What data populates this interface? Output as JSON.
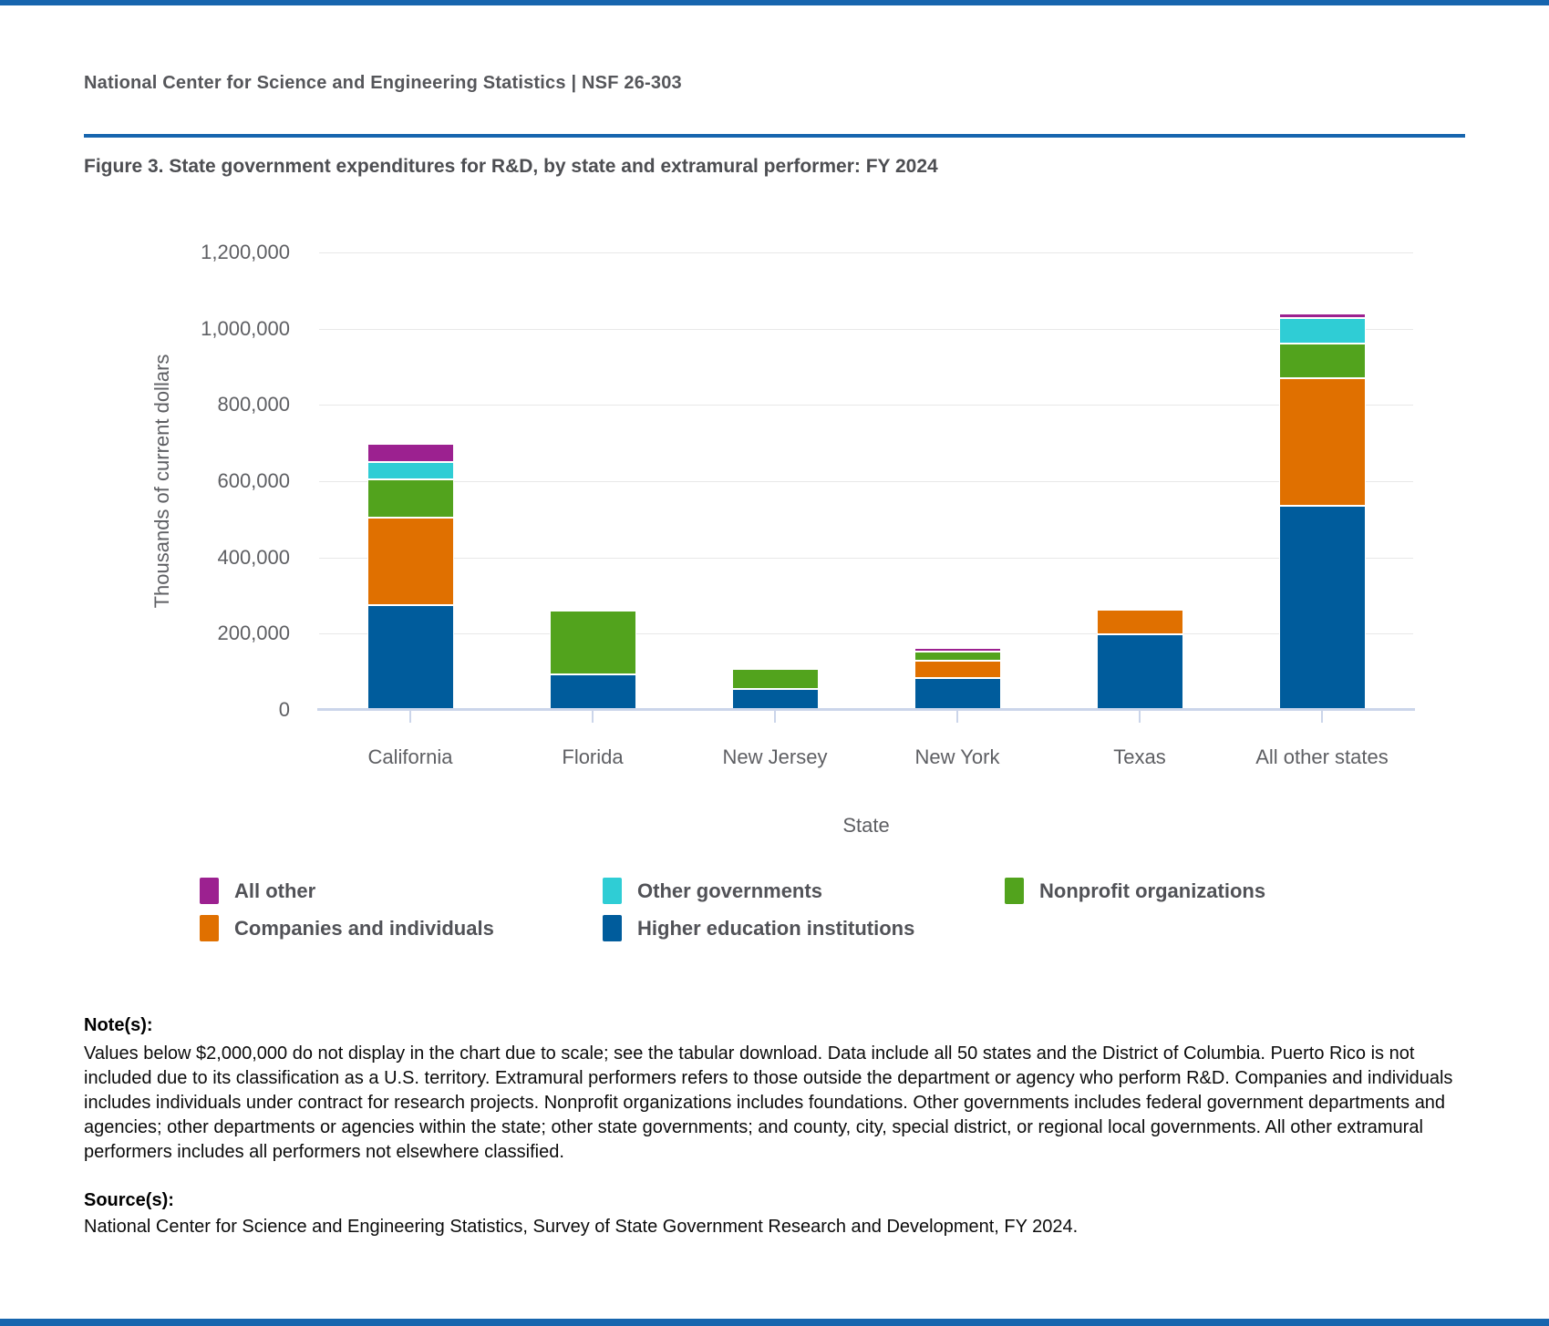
{
  "page": {
    "accent_color": "#1765ae"
  },
  "header": {
    "text": "National Center for Science and Engineering Statistics  |  NSF 26-303"
  },
  "figure": {
    "title": "Figure 3. State government expenditures for R&D, by state and extramural performer: FY 2024"
  },
  "chart_data": {
    "type": "bar",
    "stacked": true,
    "title": "Figure 3. State government expenditures for R&D, by state and extramural performer: FY 2024",
    "categories": [
      "California",
      "Florida",
      "New Jersey",
      "New York",
      "Texas",
      "All other states"
    ],
    "series": [
      {
        "name": "Higher education institutions",
        "color": "#005c9c",
        "values": [
          276000,
          93000,
          54000,
          84000,
          198000,
          535000
        ]
      },
      {
        "name": "Companies and individuals",
        "color": "#e07000",
        "values": [
          230000,
          0,
          0,
          45000,
          64000,
          335000
        ]
      },
      {
        "name": "Nonprofit organizations",
        "color": "#52a31d",
        "values": [
          100000,
          167000,
          53000,
          24000,
          0,
          90000
        ]
      },
      {
        "name": "Other governments",
        "color": "#2fcdd5",
        "values": [
          45000,
          0,
          0,
          0,
          0,
          68000
        ]
      },
      {
        "name": "All other",
        "color": "#9c2190",
        "values": [
          48000,
          0,
          0,
          10000,
          0,
          12000
        ]
      }
    ],
    "xlabel": "State",
    "ylabel": "Thousands of current dollars",
    "ylim": [
      0,
      1200000
    ],
    "ytick_interval": 200000,
    "ytick_labels": [
      "0",
      "200,000",
      "400,000",
      "600,000",
      "800,000",
      "1,000,000",
      "1,200,000"
    ],
    "grid": true,
    "legend_position": "bottom",
    "units": "thousands of current dollars"
  },
  "legend": {
    "items": [
      "All other",
      "Other governments",
      "Nonprofit organizations",
      "Companies and individuals",
      "Higher education institutions"
    ]
  },
  "notes": {
    "label": "Note(s):",
    "text": "Values below $2,000,000 do not display in the chart due to scale; see the tabular download. Data include all 50 states and the District of Columbia. Puerto Rico is not included due to its classification as a U.S. territory. Extramural performers refers to those outside the department or agency who perform R&D. Companies and individuals includes individuals under contract for research projects. Nonprofit organizations includes foundations. Other governments includes federal government departments and agencies; other departments or agencies within the state; other state governments; and county, city, special district, or regional local governments. All other extramural performers includes all performers not elsewhere classified."
  },
  "sources": {
    "label": "Source(s):",
    "text": "National Center for Science and Engineering Statistics, Survey of State Government Research and Development, FY 2024."
  }
}
